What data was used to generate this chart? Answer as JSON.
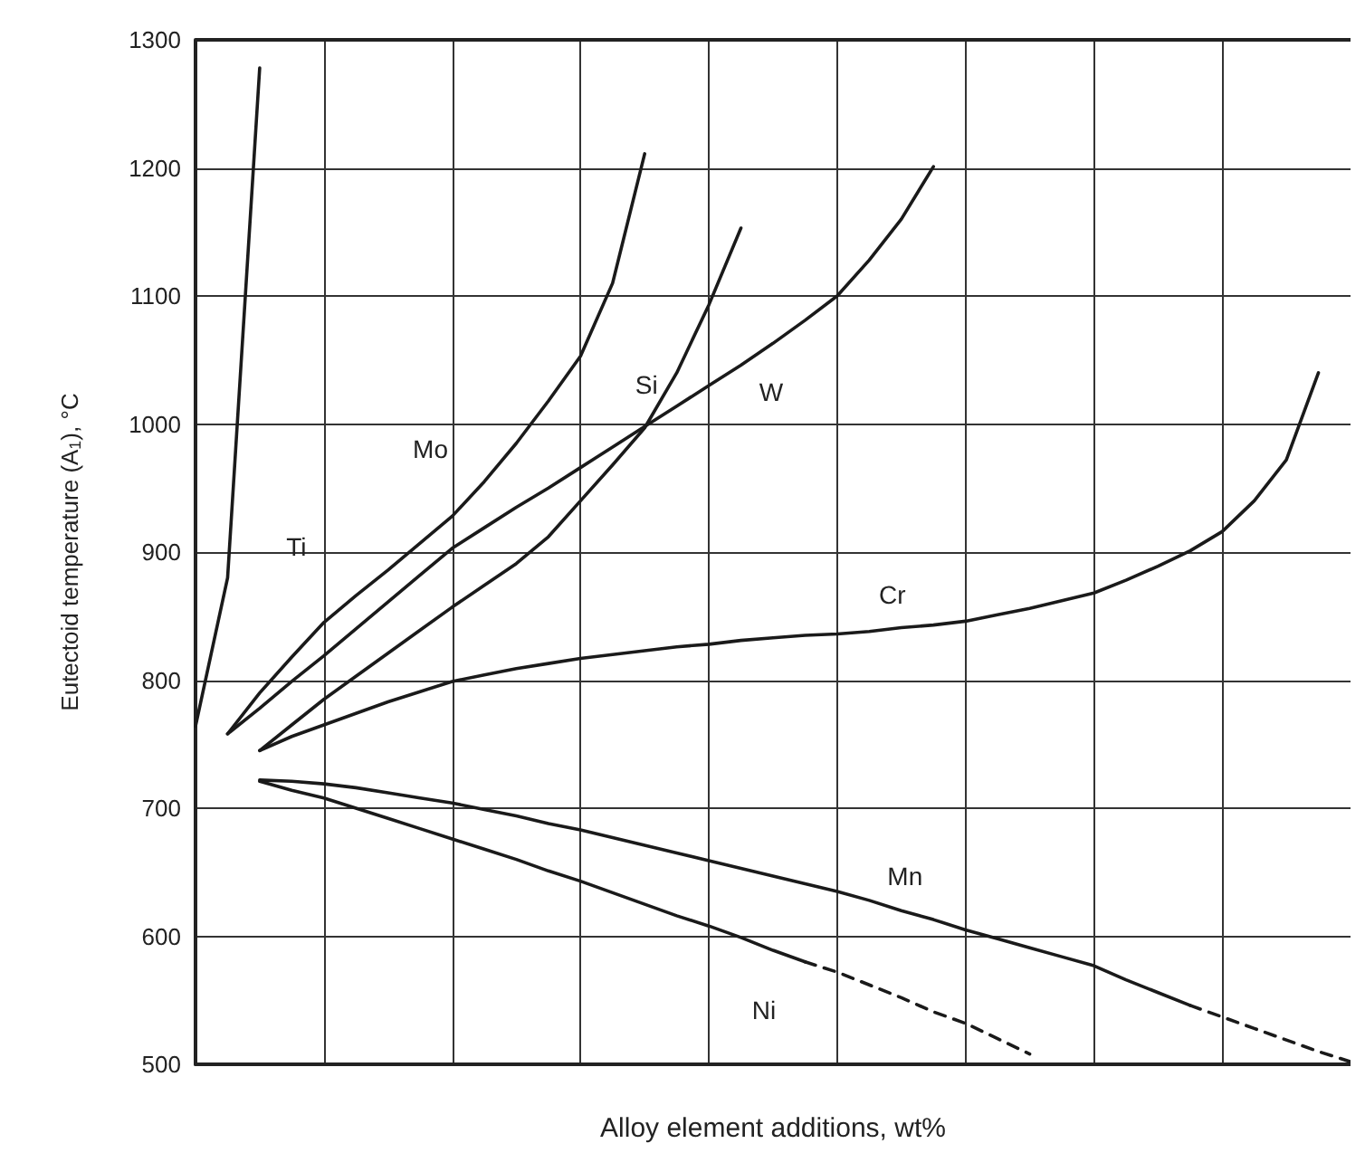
{
  "chart_data": {
    "type": "line",
    "xlabel": "Alloy element additions, wt%",
    "ylabel": "Eutectoid temperature (A$_{1}$), °C",
    "categories": [
      null,
      null,
      null,
      null,
      null,
      null,
      null,
      null,
      null,
      null,
      null,
      null,
      null,
      null,
      null,
      null,
      null,
      null,
      null,
      null,
      null,
      null,
      null,
      null,
      null,
      null,
      null,
      null,
      null,
      null,
      null,
      null,
      null,
      null,
      null,
      null,
      null
    ],
    "ylim": [
      500,
      1300
    ],
    "yticks": [
      500,
      600,
      700,
      800,
      900,
      1000,
      1100,
      1200,
      1300
    ],
    "grid": true,
    "tick_labels": "y",
    "marker": "none",
    "line_style": "solid",
    "series": [
      {
        "name": "Ti",
        "color": "#1a1a1a",
        "values": [
          764,
          880,
          1278,
          null,
          null,
          null,
          null,
          null,
          null,
          null,
          null,
          null,
          null,
          null,
          null,
          null,
          null,
          null,
          null,
          null,
          null,
          null,
          null,
          null,
          null,
          null,
          null,
          null,
          null,
          null,
          null,
          null,
          null,
          null,
          null,
          null,
          null
        ]
      },
      {
        "name": "Mo",
        "color": "#1a1a1a",
        "values": [
          null,
          758,
          790,
          818,
          845,
          866,
          886,
          907,
          928,
          955,
          985,
          1018,
          1053,
          1110,
          1211,
          null,
          null,
          null,
          null,
          null,
          null,
          null,
          null,
          null,
          null,
          null,
          null,
          null,
          null,
          null,
          null,
          null,
          null,
          null,
          null,
          null,
          null
        ]
      },
      {
        "name": "Si",
        "color": "#1a1a1a",
        "values": [
          null,
          null,
          745,
          765,
          785,
          803,
          821,
          839,
          857,
          874,
          891,
          912,
          940,
          968,
          997,
          1040,
          1093,
          1153,
          null,
          null,
          null,
          null,
          null,
          null,
          null,
          null,
          null,
          null,
          null,
          null,
          null,
          null,
          null,
          null,
          null,
          null,
          null
        ]
      },
      {
        "name": "W",
        "color": "#1a1a1a",
        "values": [
          null,
          758,
          778,
          799,
          819,
          840,
          861,
          882,
          903,
          919,
          935,
          950,
          966,
          982,
          998,
          1014,
          1030,
          1046,
          1063,
          1081,
          1100,
          1128,
          1160,
          1201,
          null,
          null,
          null,
          null,
          null,
          null,
          null,
          null,
          null,
          null,
          null,
          null,
          null
        ]
      },
      {
        "name": "Cr",
        "color": "#1a1a1a",
        "values": [
          null,
          null,
          745,
          756,
          765,
          774,
          783,
          791,
          799,
          804,
          809,
          813,
          817,
          820,
          823,
          826,
          828,
          831,
          833,
          835,
          836,
          838,
          841,
          843,
          846,
          851,
          856,
          862,
          868,
          878,
          889,
          901,
          916,
          940,
          972,
          1040,
          null
        ]
      },
      {
        "name": "Mn",
        "color": "#1a1a1a",
        "values": [
          null,
          null,
          722,
          721,
          719,
          716,
          712,
          708,
          704,
          699,
          694,
          688,
          683,
          677,
          671,
          665,
          659,
          653,
          647,
          641,
          635,
          628,
          620,
          613,
          605,
          598,
          591,
          584,
          577,
          566,
          556,
          546,
          null,
          null,
          null,
          null,
          null
        ]
      },
      {
        "color": "#1a1a1a",
        "line_style": "dashed",
        "values": [
          null,
          null,
          null,
          null,
          null,
          null,
          null,
          null,
          null,
          null,
          null,
          null,
          null,
          null,
          null,
          null,
          null,
          null,
          null,
          null,
          null,
          null,
          null,
          null,
          null,
          null,
          null,
          null,
          null,
          null,
          null,
          546,
          537,
          528,
          519,
          510,
          502
        ]
      },
      {
        "name": "Ni",
        "color": "#1a1a1a",
        "values": [
          null,
          null,
          721,
          714,
          708,
          700,
          692,
          684,
          676,
          668,
          660,
          651,
          643,
          634,
          625,
          616,
          608,
          599,
          589,
          580,
          null,
          null,
          null,
          null,
          null,
          null,
          null,
          null,
          null,
          null,
          null,
          null,
          null,
          null,
          null,
          null,
          null
        ]
      },
      {
        "color": "#1a1a1a",
        "line_style": "dashed",
        "values": [
          null,
          null,
          null,
          null,
          null,
          null,
          null,
          null,
          null,
          null,
          null,
          null,
          null,
          null,
          null,
          null,
          null,
          null,
          null,
          580,
          572,
          562,
          552,
          541,
          532,
          520,
          508,
          null,
          null,
          null,
          null,
          null,
          null,
          null,
          null,
          null,
          null
        ]
      }
    ]
  }
}
